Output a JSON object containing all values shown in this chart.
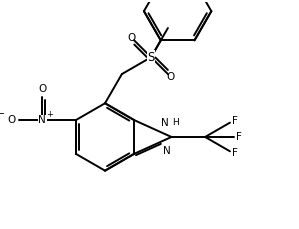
{
  "bg_color": "#ffffff",
  "line_color": "#000000",
  "lw": 1.4,
  "figsize": [
    2.99,
    2.29
  ],
  "dpi": 100,
  "xlim": [
    0,
    9
  ],
  "ylim": [
    0,
    7
  ]
}
